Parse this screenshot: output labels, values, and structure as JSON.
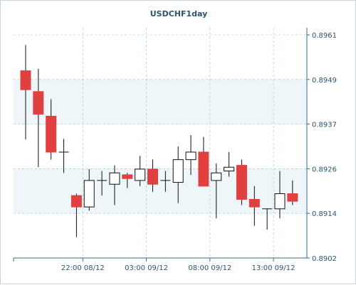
{
  "chart_data": {
    "type": "candlestick",
    "title": "USDCHF1day",
    "xlabel": "",
    "ylabel": "",
    "ylim": [
      0.8902,
      0.8961
    ],
    "y_ticks": [
      "0.8961",
      "0.8949",
      "0.8937",
      "0.8926",
      "0.8914",
      "0.8902"
    ],
    "x_ticks": [
      {
        "label": "22:00 08/12",
        "index": 4.5
      },
      {
        "label": "03:00 09/12",
        "index": 9.5
      },
      {
        "label": "08:00 09/12",
        "index": 14.5
      },
      {
        "label": "13:00 09/12",
        "index": 19.5
      }
    ],
    "grid": true,
    "colors": {
      "bear": "#e04040",
      "bull": "#ffffff",
      "outline": "#111111",
      "grid": "#8fc5cc",
      "axis": "#3a6a86",
      "plot_band": "#eef6fa"
    },
    "candles": [
      {
        "open": 0.89515,
        "high": 0.89583,
        "low": 0.89333,
        "close": 0.89465
      },
      {
        "open": 0.8946,
        "high": 0.8952,
        "low": 0.8926,
        "close": 0.894
      },
      {
        "open": 0.89395,
        "high": 0.8944,
        "low": 0.8928,
        "close": 0.893
      },
      {
        "open": 0.893,
        "high": 0.89335,
        "low": 0.89245,
        "close": 0.893
      },
      {
        "open": 0.89185,
        "high": 0.8919,
        "low": 0.89075,
        "close": 0.89155
      },
      {
        "open": 0.89155,
        "high": 0.89255,
        "low": 0.89145,
        "close": 0.89225
      },
      {
        "open": 0.89225,
        "high": 0.8925,
        "low": 0.89185,
        "close": 0.89225
      },
      {
        "open": 0.89215,
        "high": 0.89265,
        "low": 0.8916,
        "close": 0.89245
      },
      {
        "open": 0.8924,
        "high": 0.89245,
        "low": 0.89205,
        "close": 0.8923
      },
      {
        "open": 0.89225,
        "high": 0.8929,
        "low": 0.8921,
        "close": 0.89255
      },
      {
        "open": 0.89255,
        "high": 0.8928,
        "low": 0.89195,
        "close": 0.89215
      },
      {
        "open": 0.89225,
        "high": 0.8925,
        "low": 0.89195,
        "close": 0.89225
      },
      {
        "open": 0.8922,
        "high": 0.89315,
        "low": 0.89165,
        "close": 0.8928
      },
      {
        "open": 0.8928,
        "high": 0.89345,
        "low": 0.8924,
        "close": 0.893
      },
      {
        "open": 0.893,
        "high": 0.8934,
        "low": 0.8921,
        "close": 0.8921
      },
      {
        "open": 0.89225,
        "high": 0.8927,
        "low": 0.89125,
        "close": 0.89245
      },
      {
        "open": 0.8925,
        "high": 0.893,
        "low": 0.89235,
        "close": 0.8926
      },
      {
        "open": 0.89265,
        "high": 0.8928,
        "low": 0.8916,
        "close": 0.89175
      },
      {
        "open": 0.89175,
        "high": 0.8921,
        "low": 0.89105,
        "close": 0.89155
      },
      {
        "open": 0.8915,
        "high": 0.8915,
        "low": 0.89095,
        "close": 0.8915
      },
      {
        "open": 0.8915,
        "high": 0.8925,
        "low": 0.89125,
        "close": 0.8919
      },
      {
        "open": 0.8919,
        "high": 0.89225,
        "low": 0.8916,
        "close": 0.8917
      }
    ]
  }
}
